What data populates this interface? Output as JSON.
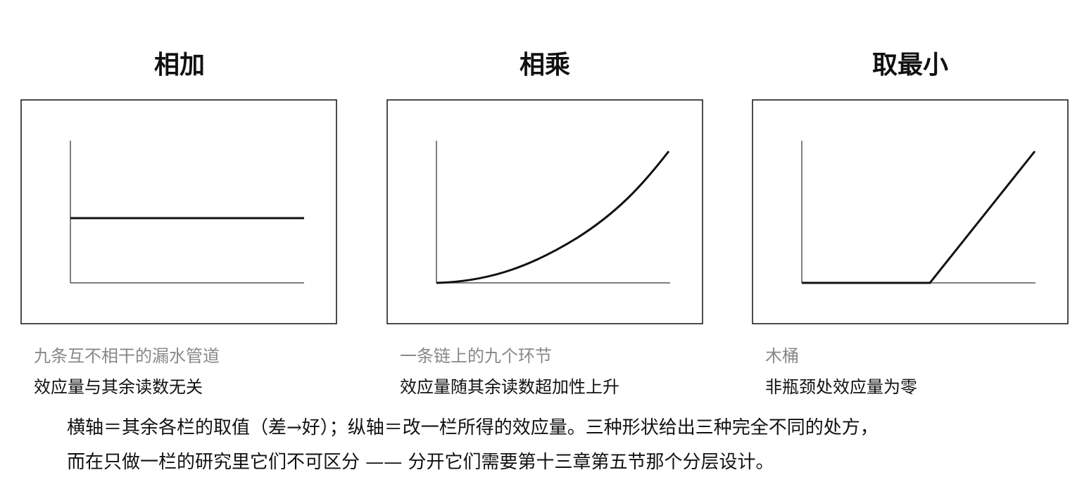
{
  "panels": [
    {
      "title": "相加",
      "caption": "九条互不相干的漏水管道",
      "effect": "效应量与其余读数无关"
    },
    {
      "title": "相乘",
      "caption": "一条链上的九个环节",
      "effect": "效应量随其余读数超加性上升"
    },
    {
      "title": "取最小",
      "caption": "木桶",
      "effect": "非瓶颈处效应量为零"
    }
  ],
  "footer": [
    "横轴＝其余各栏的取值（差→好）；纵轴＝改一栏所得的效应量。三种形状给出三种完全不同的处方，",
    "而在只做一栏的研究里它们不可区分 —— 分开它们需要第十三章第五节那个分层设计。"
  ]
}
